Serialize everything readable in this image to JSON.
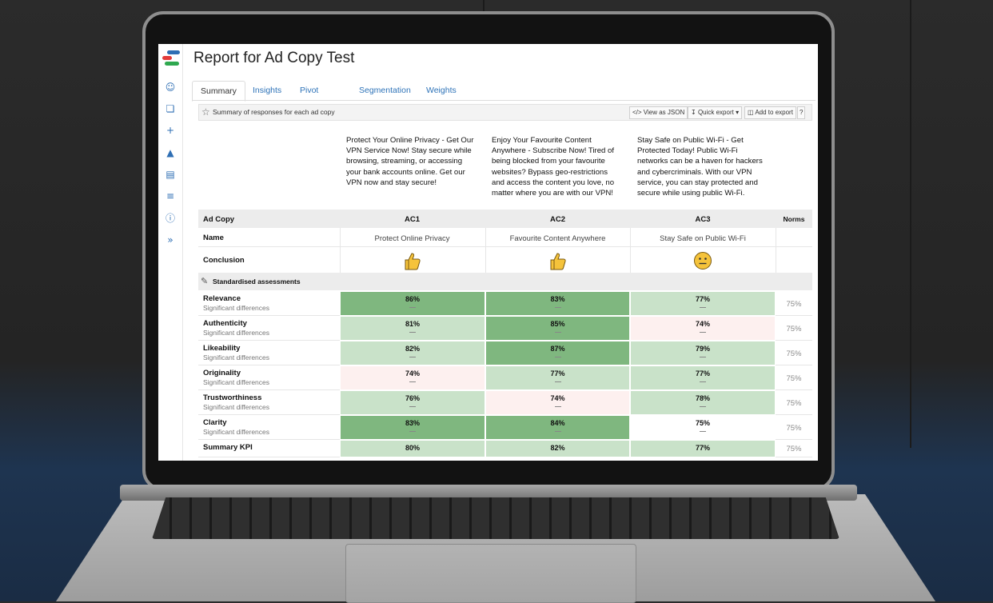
{
  "app": {
    "title": "Report for Ad Copy Test"
  },
  "tabs": [
    {
      "label": "Summary",
      "active": true
    },
    {
      "label": "Insights"
    },
    {
      "label": "Pivot tables"
    },
    {
      "label": "Segmentation"
    },
    {
      "label": "Weights"
    }
  ],
  "panel": {
    "title": "Summary of responses for each ad copy",
    "view_json": "View as JSON",
    "quick_export": "Quick export",
    "add_export": "Add to export"
  },
  "sidebar_icons": [
    "user-icon",
    "layers-icon",
    "plus-icon",
    "flask-icon",
    "book-icon",
    "list-icon",
    "help-icon",
    "expand-icon"
  ],
  "ad_copies": [
    {
      "code": "AC1",
      "text": "Protect Your Online Privacy - Get Our VPN Service Now! Stay secure while browsing, streaming, or accessing your bank accounts online. Get our VPN now and stay secure!",
      "name": "Protect Online Privacy",
      "conclusion": "thumbs-up-icon"
    },
    {
      "code": "AC2",
      "text": "Enjoy Your Favourite Content Anywhere - Subscribe Now! Tired of being blocked from your favourite websites? Bypass geo-restrictions and access the content you love, no matter where you are with our VPN!",
      "name": "Favourite Content Anywhere",
      "conclusion": "thumbs-up-icon"
    },
    {
      "code": "AC3",
      "text": "Stay Safe on Public Wi-Fi - Get Protected Today! Public Wi-Fi networks can be a haven for hackers and cybercriminals. With our VPN service, you can stay protected and secure while using public Wi-Fi.",
      "name": "Stay Safe on Public Wi-Fi",
      "conclusion": "neutral-face-icon"
    }
  ],
  "headers": {
    "ad_copy": "Ad Copy",
    "name": "Name",
    "conclusion": "Conclusion",
    "norms": "Norms",
    "section": "Standardised assessments"
  },
  "metrics": [
    {
      "label": "Relevance",
      "sub": "Significant differences",
      "values": [
        "86%",
        "83%",
        "77%"
      ],
      "norm": "75%"
    },
    {
      "label": "Authenticity",
      "sub": "Significant differences",
      "values": [
        "81%",
        "85%",
        "74%"
      ],
      "norm": "75%"
    },
    {
      "label": "Likeability",
      "sub": "Significant differences",
      "values": [
        "82%",
        "87%",
        "79%"
      ],
      "norm": "75%"
    },
    {
      "label": "Originality",
      "sub": "Significant differences",
      "values": [
        "74%",
        "77%",
        "77%"
      ],
      "norm": "75%"
    },
    {
      "label": "Trustworthiness",
      "sub": "Significant differences",
      "values": [
        "76%",
        "74%",
        "78%"
      ],
      "norm": "75%"
    },
    {
      "label": "Clarity",
      "sub": "Significant differences",
      "values": [
        "83%",
        "84%",
        "75%"
      ],
      "norm": "75%"
    },
    {
      "label": "Summary KPI",
      "sub": "",
      "values": [
        "80%",
        "82%",
        "77%"
      ],
      "norm": "75%"
    }
  ],
  "colors": {
    "strong_green": "#7fb77f",
    "light_green": "#c9e2c9",
    "pale_red": "#fdf0ef",
    "neutral": "#ffffff",
    "link": "#2e73b8"
  }
}
